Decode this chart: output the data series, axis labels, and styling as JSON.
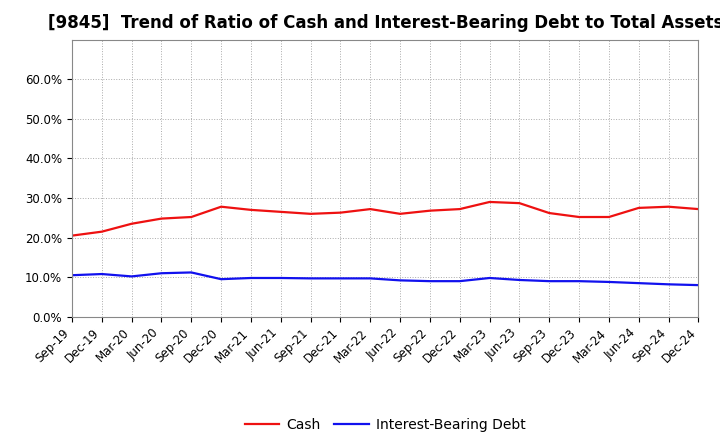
{
  "title": "[9845]  Trend of Ratio of Cash and Interest-Bearing Debt to Total Assets",
  "x_labels": [
    "Sep-19",
    "Dec-19",
    "Mar-20",
    "Jun-20",
    "Sep-20",
    "Dec-20",
    "Mar-21",
    "Jun-21",
    "Sep-21",
    "Dec-21",
    "Mar-22",
    "Jun-22",
    "Sep-22",
    "Dec-22",
    "Mar-23",
    "Jun-23",
    "Sep-23",
    "Dec-23",
    "Mar-24",
    "Jun-24",
    "Sep-24",
    "Dec-24"
  ],
  "cash": [
    0.205,
    0.215,
    0.235,
    0.248,
    0.252,
    0.278,
    0.27,
    0.265,
    0.26,
    0.263,
    0.272,
    0.26,
    0.268,
    0.272,
    0.29,
    0.287,
    0.262,
    0.252,
    0.252,
    0.275,
    0.278,
    0.272
  ],
  "debt": [
    0.105,
    0.108,
    0.102,
    0.11,
    0.112,
    0.095,
    0.098,
    0.098,
    0.097,
    0.097,
    0.097,
    0.092,
    0.09,
    0.09,
    0.098,
    0.093,
    0.09,
    0.09,
    0.088,
    0.085,
    0.082,
    0.08
  ],
  "cash_color": "#EE1111",
  "debt_color": "#1111EE",
  "ylim": [
    0.0,
    0.7
  ],
  "yticks": [
    0.0,
    0.1,
    0.2,
    0.3,
    0.4,
    0.5,
    0.6
  ],
  "background_color": "#FFFFFF",
  "plot_bg_color": "#FFFFFF",
  "grid_color": "#AAAAAA",
  "legend_cash": "Cash",
  "legend_debt": "Interest-Bearing Debt",
  "title_fontsize": 12,
  "axis_fontsize": 8.5,
  "legend_fontsize": 10,
  "line_width": 1.6
}
